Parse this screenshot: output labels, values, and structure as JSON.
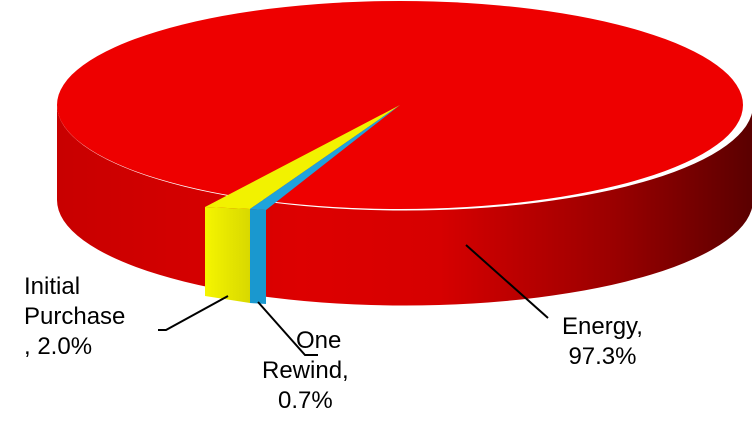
{
  "chart_data": {
    "type": "pie",
    "style": "3d",
    "slices": [
      {
        "name": "Energy",
        "value": 97.3,
        "value_label": "97.3%",
        "color": "#ee0000"
      },
      {
        "name": "Initial Purchase",
        "value": 2.0,
        "value_label": "2.0%",
        "color": "#f2f200"
      },
      {
        "name": "One Rewind",
        "value": 0.7,
        "value_label": "0.7%",
        "color": "#1fa3dc"
      }
    ],
    "labels": {
      "initial": {
        "line1": "Initial",
        "line2": "Purchase",
        "line3": ", 2.0%"
      },
      "rewind": {
        "line1": "One",
        "line2": "Rewind,",
        "line3": "0.7%"
      },
      "energy": {
        "line1": "Energy,",
        "line2": "97.3%"
      }
    },
    "legend": "none"
  }
}
